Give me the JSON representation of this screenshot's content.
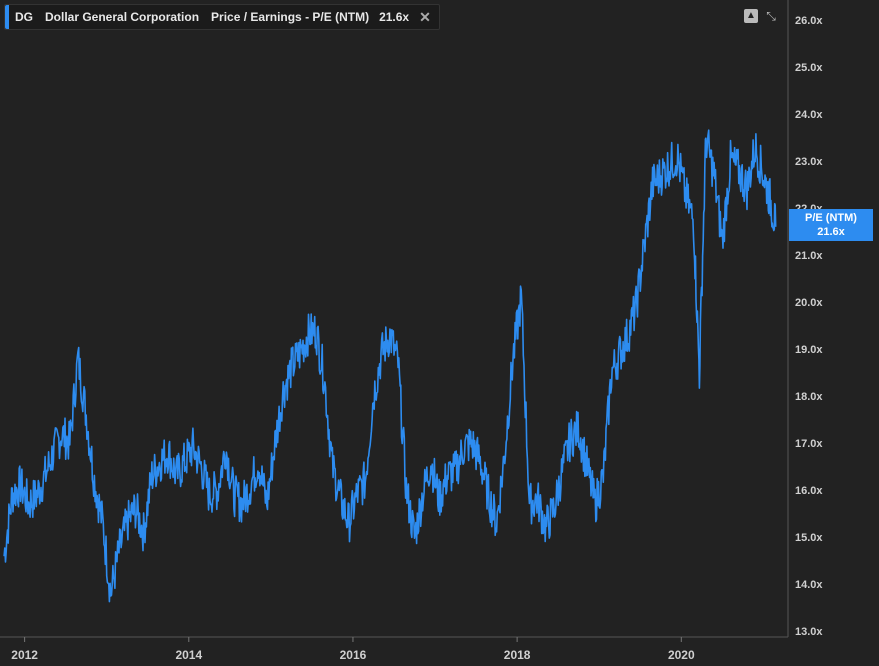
{
  "legend": {
    "ticker": "DG",
    "company": "Dollar General Corporation",
    "metric": "Price / Earnings - P/E (NTM)",
    "value": "21.6x"
  },
  "badge": {
    "label": "P/E (NTM)",
    "value": "21.6x"
  },
  "colors": {
    "line": "#2d8cf0",
    "background": "#222222"
  },
  "chart_data": {
    "type": "line",
    "series": [
      {
        "name": "P/E (NTM)"
      }
    ],
    "x": [
      2011.75,
      2011.85,
      2011.95,
      2012.05,
      2012.15,
      2012.25,
      2012.35,
      2012.45,
      2012.55,
      2012.65,
      2012.75,
      2012.85,
      2012.95,
      2013.05,
      2013.15,
      2013.25,
      2013.35,
      2013.45,
      2013.55,
      2013.65,
      2013.75,
      2013.85,
      2013.95,
      2014.05,
      2014.15,
      2014.25,
      2014.35,
      2014.45,
      2014.55,
      2014.65,
      2014.75,
      2014.85,
      2014.95,
      2015.05,
      2015.15,
      2015.25,
      2015.35,
      2015.45,
      2015.55,
      2015.65,
      2015.75,
      2015.85,
      2015.95,
      2016.05,
      2016.15,
      2016.25,
      2016.35,
      2016.45,
      2016.55,
      2016.65,
      2016.75,
      2016.85,
      2016.95,
      2017.05,
      2017.15,
      2017.25,
      2017.35,
      2017.45,
      2017.55,
      2017.65,
      2017.75,
      2017.85,
      2017.95,
      2018.05,
      2018.15,
      2018.25,
      2018.35,
      2018.45,
      2018.55,
      2018.65,
      2018.75,
      2018.85,
      2018.95,
      2019.05,
      2019.15,
      2019.25,
      2019.35,
      2019.45,
      2019.55,
      2019.65,
      2019.75,
      2019.85,
      2019.95,
      2020.05,
      2020.15,
      2020.22,
      2020.3,
      2020.4,
      2020.5,
      2020.6,
      2020.7,
      2020.8,
      2020.9,
      2021.0,
      2021.08,
      2021.15
    ],
    "values": [
      14.6,
      15.9,
      16.1,
      15.7,
      15.9,
      16.3,
      16.8,
      17.2,
      17.0,
      18.8,
      17.6,
      16.2,
      15.3,
      13.8,
      14.7,
      15.3,
      15.6,
      15.1,
      16.3,
      16.6,
      16.8,
      16.3,
      16.6,
      16.9,
      16.5,
      15.9,
      16.0,
      16.9,
      15.9,
      15.7,
      16.1,
      16.6,
      15.7,
      17.0,
      18.1,
      18.6,
      18.9,
      19.3,
      19.4,
      18.4,
      16.5,
      15.8,
      15.3,
      15.9,
      16.2,
      18.0,
      18.9,
      19.3,
      18.7,
      16.0,
      15.0,
      15.9,
      16.6,
      15.8,
      16.3,
      16.4,
      16.9,
      17.0,
      16.6,
      15.9,
      15.3,
      16.8,
      18.8,
      20.1,
      15.7,
      15.8,
      15.2,
      15.6,
      16.4,
      17.1,
      17.3,
      16.5,
      15.7,
      16.3,
      18.5,
      18.9,
      19.3,
      19.9,
      21.2,
      22.5,
      22.7,
      22.9,
      23.1,
      22.3,
      21.7,
      18.5,
      23.5,
      22.7,
      21.3,
      23.0,
      22.8,
      22.4,
      23.3,
      22.7,
      22.2,
      21.6
    ],
    "ylim": [
      13.0,
      26.0
    ],
    "yticks": [
      "26.0x",
      "25.0x",
      "24.0x",
      "23.0x",
      "22.0x",
      "21.0x",
      "20.0x",
      "19.0x",
      "18.0x",
      "17.0x",
      "16.0x",
      "15.0x",
      "14.0x",
      "13.0x"
    ],
    "ytick_values": [
      26,
      25,
      24,
      23,
      22,
      21,
      20,
      19,
      18,
      17,
      16,
      15,
      14,
      13
    ],
    "xticks": [
      "2012",
      "2014",
      "2016",
      "2018",
      "2020"
    ],
    "xtick_values": [
      2012,
      2014,
      2016,
      2018,
      2020
    ],
    "xlim": [
      2011.7,
      2021.3
    ],
    "grid": false
  }
}
